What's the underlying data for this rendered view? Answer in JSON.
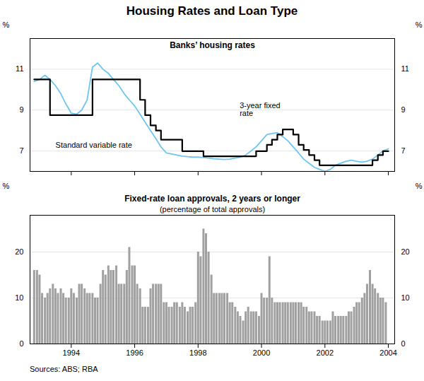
{
  "chart_data": [
    {
      "type": "line",
      "title": "Housing Rates and Loan Type",
      "annotations": [
        "Banks’ housing rates"
      ],
      "series": [
        {
          "name": "3-year fixed\nrate",
          "type": "line",
          "color": "#6ec6f0",
          "x": [
            1992.83,
            1993.0,
            1993.17,
            1993.33,
            1993.5,
            1993.67,
            1993.83,
            1994.0,
            1994.17,
            1994.33,
            1994.5,
            1994.67,
            1994.83,
            1995.0,
            1995.17,
            1995.33,
            1995.5,
            1995.67,
            1995.83,
            1996.0,
            1996.17,
            1996.33,
            1996.5,
            1996.67,
            1996.83,
            1997.0,
            1997.17,
            1997.33,
            1997.5,
            1997.67,
            1997.83,
            1998.0,
            1998.17,
            1998.33,
            1998.5,
            1998.67,
            1998.83,
            1999.0,
            1999.17,
            1999.33,
            1999.5,
            1999.67,
            1999.83,
            2000.0,
            2000.17,
            2000.33,
            2000.5,
            2000.67,
            2000.83,
            2001.0,
            2001.17,
            2001.33,
            2001.5,
            2001.67,
            2001.83,
            2002.0,
            2002.17,
            2002.33,
            2002.5,
            2002.67,
            2002.83,
            2003.0,
            2003.17,
            2003.33,
            2003.5,
            2003.67,
            2003.83,
            2004.0
          ],
          "values": [
            10.4,
            10.5,
            10.7,
            10.5,
            10.2,
            9.8,
            9.3,
            8.85,
            8.8,
            9.0,
            9.5,
            11.1,
            11.3,
            11.0,
            10.8,
            10.5,
            10.2,
            9.8,
            9.5,
            9.2,
            8.8,
            8.4,
            8.0,
            7.6,
            7.2,
            6.9,
            6.85,
            6.8,
            6.75,
            6.72,
            6.7,
            6.7,
            6.68,
            6.65,
            6.62,
            6.6,
            6.58,
            6.6,
            6.65,
            6.7,
            6.8,
            7.0,
            7.2,
            7.5,
            7.8,
            7.85,
            7.9,
            7.7,
            7.5,
            7.2,
            6.9,
            6.6,
            6.4,
            6.2,
            6.1,
            6.0,
            6.1,
            6.3,
            6.4,
            6.5,
            6.55,
            6.5,
            6.45,
            6.5,
            6.6,
            6.8,
            7.0,
            7.1
          ]
        },
        {
          "name": "Standard variable rate",
          "type": "step",
          "color": "#000000",
          "x": [
            1992.83,
            1993.0,
            1993.17,
            1993.33,
            1993.5,
            1993.67,
            1993.83,
            1994.0,
            1994.17,
            1994.5,
            1994.67,
            1994.83,
            1995.0,
            1995.17,
            1995.33,
            1995.5,
            1995.67,
            1995.83,
            1996.0,
            1996.17,
            1996.33,
            1996.5,
            1996.67,
            1996.83,
            1997.0,
            1997.17,
            1997.33,
            1997.5,
            1997.67,
            1997.83,
            1998.0,
            1998.17,
            1998.33,
            1998.5,
            1998.67,
            1998.83,
            1999.0,
            1999.17,
            1999.33,
            1999.5,
            1999.67,
            1999.83,
            2000.0,
            2000.17,
            2000.33,
            2000.5,
            2000.67,
            2000.83,
            2001.0,
            2001.17,
            2001.33,
            2001.5,
            2001.67,
            2001.83,
            2002.0,
            2002.17,
            2002.33,
            2002.5,
            2002.67,
            2002.83,
            2003.0,
            2003.17,
            2003.33,
            2003.5,
            2003.67,
            2003.83,
            2004.0
          ],
          "values": [
            10.5,
            10.5,
            10.5,
            8.75,
            8.75,
            8.75,
            8.75,
            8.75,
            8.75,
            8.75,
            10.5,
            10.5,
            10.5,
            10.5,
            10.5,
            10.5,
            10.5,
            10.5,
            10.5,
            9.5,
            8.75,
            8.25,
            8.0,
            7.55,
            7.55,
            7.55,
            7.55,
            6.99,
            6.99,
            6.99,
            6.99,
            6.74,
            6.74,
            6.74,
            6.74,
            6.74,
            6.74,
            6.74,
            6.74,
            6.74,
            6.74,
            6.99,
            6.99,
            7.3,
            7.55,
            7.8,
            8.05,
            8.05,
            7.8,
            7.3,
            7.05,
            6.8,
            6.55,
            6.3,
            6.3,
            6.3,
            6.3,
            6.3,
            6.3,
            6.3,
            6.3,
            6.3,
            6.3,
            6.55,
            6.8,
            6.99,
            6.99
          ]
        }
      ],
      "xlim": [
        1992.7,
        2004.2
      ],
      "xticks": [
        1994,
        1996,
        1998,
        2000,
        2002,
        2004
      ],
      "ylabel": "%",
      "ylim": [
        6.0,
        12.5
      ],
      "yticks": [
        7,
        9,
        11
      ],
      "grid": true,
      "tick_labels": "y"
    },
    {
      "type": "bar",
      "annotations": [
        "Fixed-rate loan approvals, 2 years or longer",
        "(percentage of total approvals)"
      ],
      "x": [
        1992.83,
        1992.92,
        1993.0,
        1993.08,
        1993.17,
        1993.25,
        1993.33,
        1993.42,
        1993.5,
        1993.58,
        1993.67,
        1993.75,
        1993.83,
        1993.92,
        1994.0,
        1994.08,
        1994.17,
        1994.25,
        1994.33,
        1994.42,
        1994.5,
        1994.58,
        1994.67,
        1994.75,
        1994.83,
        1994.92,
        1995.0,
        1995.08,
        1995.17,
        1995.25,
        1995.33,
        1995.42,
        1995.5,
        1995.58,
        1995.67,
        1995.75,
        1995.83,
        1995.92,
        1996.0,
        1996.08,
        1996.17,
        1996.25,
        1996.33,
        1996.42,
        1996.5,
        1996.58,
        1996.67,
        1996.75,
        1996.83,
        1996.92,
        1997.0,
        1997.08,
        1997.17,
        1997.25,
        1997.33,
        1997.42,
        1997.5,
        1997.58,
        1997.67,
        1997.75,
        1997.83,
        1997.92,
        1998.0,
        1998.08,
        1998.17,
        1998.25,
        1998.33,
        1998.42,
        1998.5,
        1998.58,
        1998.67,
        1998.75,
        1998.83,
        1998.92,
        1999.0,
        1999.08,
        1999.17,
        1999.25,
        1999.33,
        1999.42,
        1999.5,
        1999.58,
        1999.67,
        1999.75,
        1999.83,
        1999.92,
        2000.0,
        2000.08,
        2000.17,
        2000.25,
        2000.33,
        2000.42,
        2000.5,
        2000.58,
        2000.67,
        2000.75,
        2000.83,
        2000.92,
        2001.0,
        2001.08,
        2001.17,
        2001.25,
        2001.33,
        2001.42,
        2001.5,
        2001.58,
        2001.67,
        2001.75,
        2001.83,
        2001.92,
        2002.0,
        2002.08,
        2002.17,
        2002.25,
        2002.33,
        2002.42,
        2002.5,
        2002.58,
        2002.67,
        2002.75,
        2002.83,
        2002.92,
        2003.0,
        2003.08,
        2003.17,
        2003.25,
        2003.33,
        2003.42,
        2003.5,
        2003.58,
        2003.67,
        2003.75,
        2003.83,
        2003.92
      ],
      "values": [
        16,
        16,
        15,
        11,
        10,
        11,
        12,
        13,
        12,
        11,
        12,
        11,
        10,
        10,
        12,
        11,
        10,
        13,
        13,
        12,
        11,
        11,
        11,
        10,
        10,
        13,
        16,
        15,
        17,
        16,
        16,
        17,
        13,
        13,
        13,
        16,
        21,
        17,
        17,
        13,
        12,
        8,
        8,
        8,
        12,
        13,
        13,
        13,
        13,
        9,
        9,
        8,
        8,
        9,
        9,
        8,
        9,
        8,
        7,
        8,
        8,
        9,
        20,
        19,
        25,
        24,
        20,
        15,
        11,
        11,
        11,
        11,
        11,
        11,
        9,
        9,
        8,
        7,
        6,
        5,
        7,
        8,
        7,
        7,
        7,
        6,
        11,
        10,
        10,
        19,
        10,
        9,
        9,
        9,
        9,
        9,
        9,
        9,
        9,
        9,
        9,
        9,
        8,
        8,
        7,
        7,
        7,
        6,
        6,
        5,
        5,
        5,
        5,
        7,
        6,
        6,
        6,
        6,
        6,
        7,
        7,
        8,
        9,
        9,
        10,
        11,
        13,
        16,
        13,
        12,
        11,
        10,
        10,
        9
      ],
      "color": "#a0a0a0",
      "xlim": [
        1992.7,
        2004.2
      ],
      "xticks": [
        1994,
        1996,
        1998,
        2000,
        2002,
        2004
      ],
      "ylabel": "%",
      "ylim": [
        0,
        28
      ],
      "yticks": [
        0,
        10,
        20
      ],
      "grid": true,
      "source": "Sources: ABS; RBA"
    }
  ]
}
